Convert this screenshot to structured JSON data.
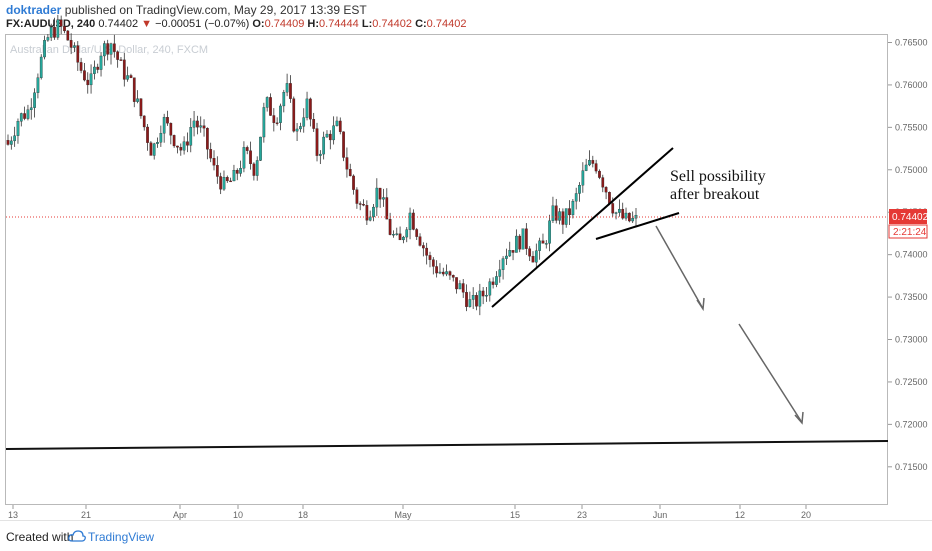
{
  "header": {
    "author": "doktrader",
    "published": "published on TradingView.com, May 29, 2017 13:39 EST",
    "symbol": "FX:AUDUSD, 240",
    "last": "0.74402",
    "change": "−0.00051 (−0.07%)",
    "open_label": "O:",
    "open": "0.74409",
    "high_label": "H:",
    "high": "0.74444",
    "low_label": "L:",
    "low": "0.74402",
    "close_label": "C:",
    "close": "0.74402"
  },
  "watermark": "Australian Dollar/U.S. Dollar, 240, FXCM",
  "annotation": {
    "line1": "Sell possibility",
    "line2": "after breakout"
  },
  "price_badge": {
    "value": "0.74402",
    "countdown": "2:21:24",
    "color": "#e53935"
  },
  "footer": {
    "created_with": "Created with",
    "brand": "TradingView"
  },
  "chart_data": {
    "type": "candlestick",
    "y_ticks": [
      "0.76500",
      "0.76000",
      "0.75500",
      "0.75000",
      "0.74500",
      "0.74000",
      "0.73500",
      "0.73000",
      "0.72500",
      "0.72000",
      "0.71500"
    ],
    "y_tick_values": [
      0.765,
      0.76,
      0.755,
      0.75,
      0.745,
      0.74,
      0.735,
      0.73,
      0.725,
      0.72,
      0.715
    ],
    "x_ticks": [
      "13",
      "21",
      "Apr",
      "10",
      "18",
      "May",
      "15",
      "23",
      "Jun",
      "12",
      "20"
    ],
    "ylim": [
      0.7105,
      0.766
    ],
    "current_price": 0.74402,
    "colors": {
      "up": "#26a69a",
      "down": "#8b1a1a",
      "wick": "#333333"
    },
    "close_path": [
      0.753,
      0.756,
      0.757,
      0.762,
      0.766,
      0.767,
      0.765,
      0.762,
      0.76,
      0.764,
      0.765,
      0.762,
      0.76,
      0.756,
      0.752,
      0.756,
      0.754,
      0.752,
      0.756,
      0.754,
      0.75,
      0.748,
      0.749,
      0.752,
      0.75,
      0.758,
      0.756,
      0.76,
      0.754,
      0.758,
      0.752,
      0.754,
      0.755,
      0.75,
      0.746,
      0.745,
      0.748,
      0.743,
      0.741,
      0.745,
      0.742,
      0.739,
      0.738,
      0.737,
      0.736,
      0.734,
      0.735,
      0.737,
      0.74,
      0.741,
      0.742,
      0.74,
      0.741,
      0.745,
      0.744,
      0.746,
      0.75,
      0.751,
      0.748,
      0.745,
      0.744,
      0.744
    ]
  }
}
